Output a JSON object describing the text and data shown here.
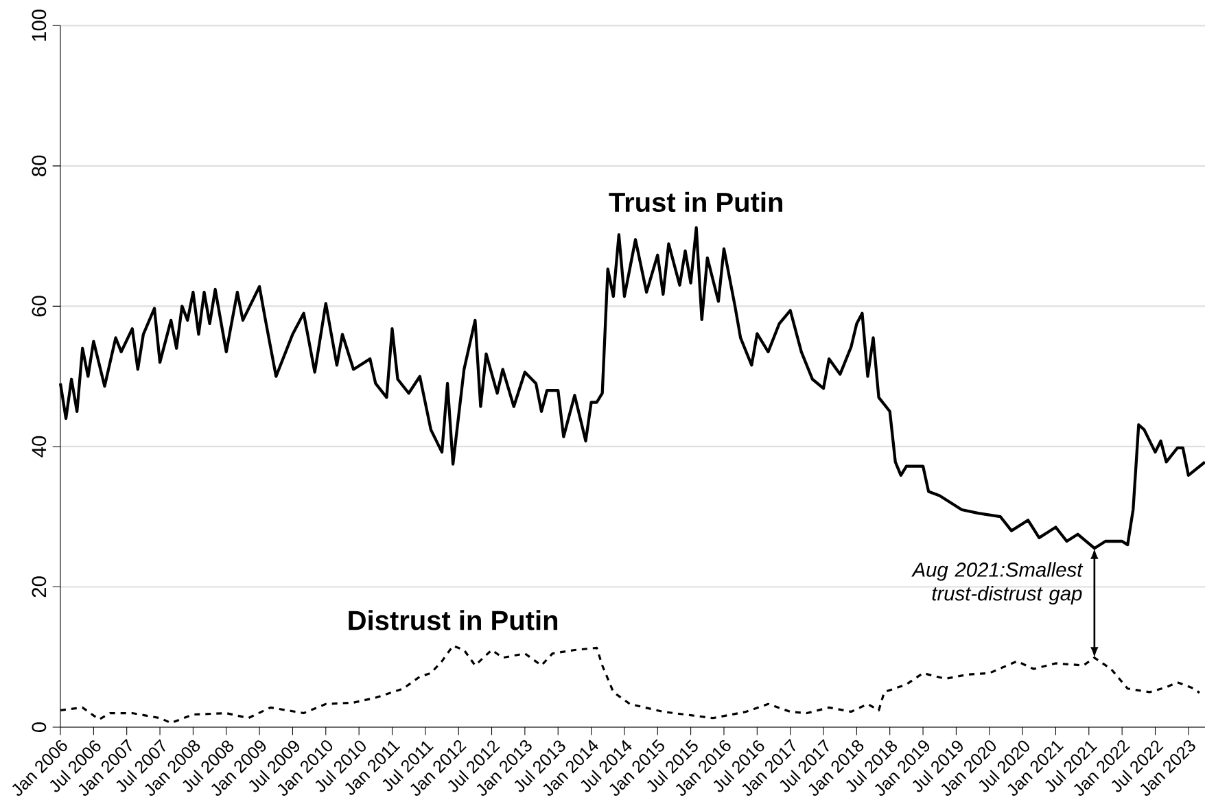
{
  "chart_data": {
    "type": "line",
    "series": [
      {
        "name": "Trust in Putin",
        "color": "#000000",
        "line_style": "solid",
        "x": [
          "2006-01",
          "2006-02",
          "2006-03",
          "2006-04",
          "2006-05",
          "2006-06",
          "2006-07",
          "2006-09",
          "2006-11",
          "2006-12",
          "2007-02",
          "2007-03",
          "2007-04",
          "2007-06",
          "2007-07",
          "2007-09",
          "2007-10",
          "2007-11",
          "2007-12",
          "2008-01",
          "2008-02",
          "2008-03",
          "2008-04",
          "2008-05",
          "2008-07",
          "2008-09",
          "2008-10",
          "2009-01",
          "2009-02",
          "2009-04",
          "2009-07",
          "2009-09",
          "2009-11",
          "2010-01",
          "2010-03",
          "2010-04",
          "2010-06",
          "2010-09",
          "2010-10",
          "2010-12",
          "2011-01",
          "2011-02",
          "2011-04",
          "2011-06",
          "2011-08",
          "2011-10",
          "2011-11",
          "2011-12",
          "2012-02",
          "2012-04",
          "2012-05",
          "2012-06",
          "2012-08",
          "2012-09",
          "2012-11",
          "2013-01",
          "2013-03",
          "2013-04",
          "2013-05",
          "2013-07",
          "2013-08",
          "2013-10",
          "2013-12",
          "2014-01",
          "2014-02",
          "2014-03",
          "2014-04",
          "2014-05",
          "2014-06",
          "2014-07",
          "2014-09",
          "2014-11",
          "2015-01",
          "2015-02",
          "2015-03",
          "2015-05",
          "2015-06",
          "2015-07",
          "2015-08",
          "2015-09",
          "2015-10",
          "2015-12",
          "2016-01",
          "2016-03",
          "2016-04",
          "2016-06",
          "2016-07",
          "2016-09",
          "2016-11",
          "2017-01",
          "2017-03",
          "2017-05",
          "2017-07",
          "2017-08",
          "2017-10",
          "2017-12",
          "2018-01",
          "2018-02",
          "2018-03",
          "2018-04",
          "2018-05",
          "2018-07",
          "2018-08",
          "2018-09",
          "2018-10",
          "2019-01",
          "2019-02",
          "2019-04",
          "2019-08",
          "2019-11",
          "2020-03",
          "2020-05",
          "2020-08",
          "2020-10",
          "2021-01",
          "2021-03",
          "2021-05",
          "2021-08",
          "2021-10",
          "2022-01",
          "2022-02",
          "2022-03",
          "2022-04",
          "2022-05",
          "2022-07",
          "2022-08",
          "2022-09",
          "2022-11",
          "2022-12",
          "2023-01",
          "2023-04"
        ],
        "values": [
          49,
          44,
          49.6,
          45,
          54,
          50,
          55,
          48.6,
          55.5,
          53.5,
          56.8,
          51,
          56,
          59.7,
          52,
          58,
          54,
          60,
          58,
          62,
          56,
          62,
          57.5,
          62.4,
          53.5,
          62,
          58,
          62.8,
          58.4,
          50,
          56,
          59,
          50.6,
          60.4,
          51.6,
          56,
          51,
          52.5,
          49,
          47,
          56.8,
          49.6,
          47.6,
          50,
          42.4,
          39.2,
          49,
          37.5,
          51,
          58,
          45.7,
          53.2,
          47.6,
          51,
          45.7,
          50.6,
          49,
          45,
          48,
          48,
          41.4,
          47.3,
          40.8,
          46.3,
          46.3,
          47.6,
          65.3,
          61.4,
          70.2,
          61.4,
          69.5,
          62,
          67.3,
          61.7,
          68.9,
          63,
          67.9,
          63.3,
          71.2,
          58.1,
          66.9,
          60.7,
          68.2,
          60,
          55.5,
          51.6,
          56.1,
          53.5,
          57.5,
          59.4,
          53.5,
          49.6,
          48.3,
          52.5,
          50.3,
          54.2,
          57.5,
          59,
          50,
          55.5,
          47,
          45,
          37.8,
          35.9,
          37.2,
          37.2,
          33.6,
          33,
          31,
          30.5,
          30,
          28,
          29.5,
          27,
          28.5,
          26.5,
          27.5,
          25.5,
          26.5,
          26.5,
          26,
          31,
          43.1,
          42.4,
          39.2,
          40.8,
          37.8,
          39.8,
          39.8,
          35.9,
          37.8
        ]
      },
      {
        "name": "Distrust in Putin",
        "color": "#000000",
        "line_style": "dashed",
        "x": [
          "2006-01",
          "2006-05",
          "2006-08",
          "2006-10",
          "2007-02",
          "2007-07",
          "2007-09",
          "2008-01",
          "2008-07",
          "2008-11",
          "2009-03",
          "2009-09",
          "2010-01",
          "2010-06",
          "2010-10",
          "2011-03",
          "2011-06",
          "2011-08",
          "2011-10",
          "2011-12",
          "2012-02",
          "2012-04",
          "2012-07",
          "2012-09",
          "2013-01",
          "2013-04",
          "2013-06",
          "2013-10",
          "2014-02",
          "2014-03",
          "2014-05",
          "2014-08",
          "2015-02",
          "2015-07",
          "2015-11",
          "2016-05",
          "2016-09",
          "2017-01",
          "2017-04",
          "2017-08",
          "2017-12",
          "2018-03",
          "2018-05",
          "2018-06",
          "2018-10",
          "2019-01",
          "2019-05",
          "2019-09",
          "2020-01",
          "2020-06",
          "2020-09",
          "2021-01",
          "2021-06",
          "2021-08",
          "2021-11",
          "2022-02",
          "2022-06",
          "2022-09",
          "2022-11",
          "2023-02",
          "2023-03"
        ],
        "values": [
          2.4,
          2.8,
          1.1,
          2,
          2,
          1.3,
          0.6,
          1.8,
          2,
          1.3,
          2.8,
          2,
          3.3,
          3.5,
          4.2,
          5.5,
          7.2,
          7.7,
          9.4,
          11.6,
          11,
          8.8,
          11,
          9.9,
          10.5,
          8.8,
          10.5,
          11,
          11.3,
          8.8,
          5,
          3.3,
          2.2,
          1.7,
          1.3,
          2.2,
          3.3,
          2.2,
          2,
          2.8,
          2.2,
          3.3,
          2.4,
          5,
          6.1,
          7.7,
          6.9,
          7.5,
          7.7,
          9.4,
          8.3,
          9.1,
          8.8,
          9.9,
          8.3,
          5.5,
          5,
          5.7,
          6.4,
          5.5,
          4.9
        ]
      }
    ],
    "xlim": [
      "2006-01",
      "2023-04"
    ],
    "xticks": [
      {
        "value": "2006-01",
        "label": "Jan 2006"
      },
      {
        "value": "2006-07",
        "label": "Jul 2006"
      },
      {
        "value": "2007-01",
        "label": "Jan 2007"
      },
      {
        "value": "2007-07",
        "label": "Jul 2007"
      },
      {
        "value": "2008-01",
        "label": "Jan 2008"
      },
      {
        "value": "2008-07",
        "label": "Jul 2008"
      },
      {
        "value": "2009-01",
        "label": "Jan 2009"
      },
      {
        "value": "2009-07",
        "label": "Jul 2009"
      },
      {
        "value": "2010-01",
        "label": "Jan 2010"
      },
      {
        "value": "2010-07",
        "label": "Jul 2010"
      },
      {
        "value": "2011-01",
        "label": "Jan 2011"
      },
      {
        "value": "2011-07",
        "label": "Jul 2011"
      },
      {
        "value": "2012-01",
        "label": "Jan 2012"
      },
      {
        "value": "2012-07",
        "label": "Jul 2012"
      },
      {
        "value": "2013-01",
        "label": "Jan 2013"
      },
      {
        "value": "2013-07",
        "label": "Jul 2013"
      },
      {
        "value": "2014-01",
        "label": "Jan 2014"
      },
      {
        "value": "2014-07",
        "label": "Jul 2014"
      },
      {
        "value": "2015-01",
        "label": "Jan 2015"
      },
      {
        "value": "2015-07",
        "label": "Jul 2015"
      },
      {
        "value": "2016-01",
        "label": "Jan 2016"
      },
      {
        "value": "2016-07",
        "label": "Jul 2016"
      },
      {
        "value": "2017-01",
        "label": "Jan 2017"
      },
      {
        "value": "2017-07",
        "label": "Jul 2017"
      },
      {
        "value": "2018-01",
        "label": "Jan 2018"
      },
      {
        "value": "2018-07",
        "label": "Jul 2018"
      },
      {
        "value": "2019-01",
        "label": "Jan 2019"
      },
      {
        "value": "2019-07",
        "label": "Jul 2019"
      },
      {
        "value": "2020-01",
        "label": "Jan 2020"
      },
      {
        "value": "2020-07",
        "label": "Jul 2020"
      },
      {
        "value": "2021-01",
        "label": "Jan 2021"
      },
      {
        "value": "2021-07",
        "label": "Jul 2021"
      },
      {
        "value": "2022-01",
        "label": "Jan 2022"
      },
      {
        "value": "2022-07",
        "label": "Jul 2022"
      },
      {
        "value": "2023-01",
        "label": "Jan 2023"
      }
    ],
    "ylim": [
      0,
      100
    ],
    "yticks": [
      0,
      20,
      40,
      60,
      80,
      100
    ],
    "grid": "y",
    "marker": "none",
    "annotations": [
      {
        "text": "Aug 2021:Smallest trust-distrust gap",
        "x": "2021-08",
        "y": 25.5
      }
    ]
  }
}
